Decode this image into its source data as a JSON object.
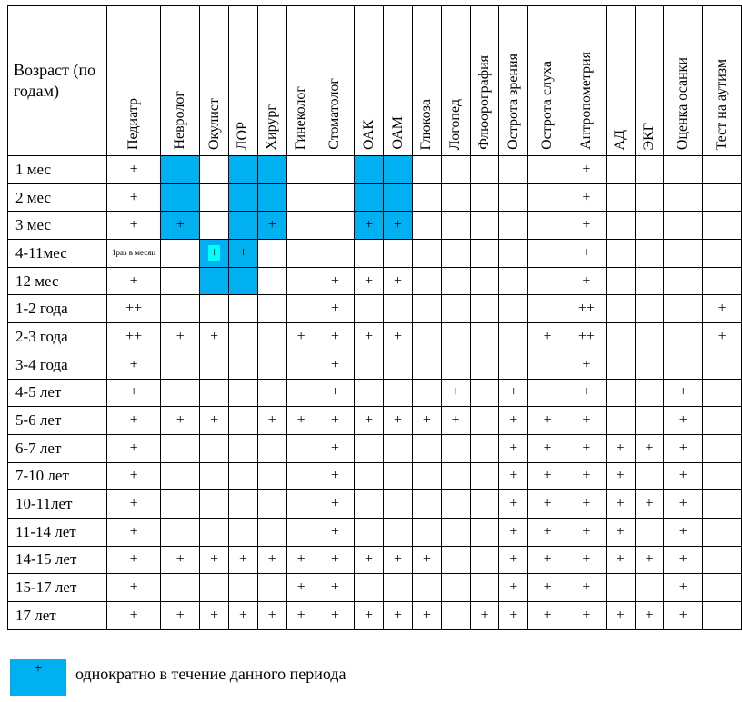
{
  "table": {
    "age_header": "Возраст (по годам)",
    "columns": [
      "Педиатр",
      "Невролог",
      "Окулист",
      "ЛОР",
      "Хирург",
      "Гинеколог",
      "Стоматолог",
      "ОАК",
      "ОАМ",
      "Глюкоза",
      "Логопед",
      "Флюорография",
      "Острота зрения",
      "Острота слуха",
      "Антропометрия",
      "АД",
      "ЭКГ",
      "Оценка осанки",
      "Тест на аутизм"
    ],
    "rows": [
      {
        "age": "1 мес",
        "cells": [
          "+",
          "",
          "",
          "",
          "",
          "",
          "",
          "",
          "",
          "",
          "",
          "",
          "",
          "",
          "+",
          "",
          "",
          "",
          ""
        ]
      },
      {
        "age": "2 мес",
        "cells": [
          "+",
          "",
          "",
          "",
          "",
          "",
          "",
          "",
          "",
          "",
          "",
          "",
          "",
          "",
          "+",
          "",
          "",
          "",
          ""
        ]
      },
      {
        "age": "3 мес",
        "cells": [
          "+",
          "+",
          "",
          "",
          "+",
          "",
          "",
          "+",
          "+",
          "",
          "",
          "",
          "",
          "",
          "+",
          "",
          "",
          "",
          ""
        ]
      },
      {
        "age": "4-11мес",
        "cells": [
          "1раз в месяц",
          "",
          "+",
          "+",
          "",
          "",
          "",
          "",
          "",
          "",
          "",
          "",
          "",
          "",
          "+",
          "",
          "",
          "",
          ""
        ]
      },
      {
        "age": "12 мес",
        "cells": [
          "+",
          "",
          "",
          "",
          "",
          "",
          "+",
          "+",
          "+",
          "",
          "",
          "",
          "",
          "",
          "+",
          "",
          "",
          "",
          ""
        ]
      },
      {
        "age": "1-2 года",
        "cells": [
          "++",
          "",
          "",
          "",
          "",
          "",
          "+",
          "",
          "",
          "",
          "",
          "",
          "",
          "",
          "++",
          "",
          "",
          "",
          "+"
        ]
      },
      {
        "age": "2-3 года",
        "cells": [
          "++",
          "+",
          "+",
          "",
          "",
          "+",
          "+",
          "+",
          "+",
          "",
          "",
          "",
          "",
          "+",
          "++",
          "",
          "",
          "",
          "+"
        ]
      },
      {
        "age": "3-4 года",
        "cells": [
          "+",
          "",
          "",
          "",
          "",
          "",
          "+",
          "",
          "",
          "",
          "",
          "",
          "",
          "",
          "+",
          "",
          "",
          "",
          ""
        ]
      },
      {
        "age": "4-5 лет",
        "cells": [
          "+",
          "",
          "",
          "",
          "",
          "",
          "+",
          "",
          "",
          "",
          "+",
          "",
          "+",
          "",
          "+",
          "",
          "",
          "+",
          ""
        ]
      },
      {
        "age": "5-6 лет",
        "cells": [
          "+",
          "+",
          "+",
          "",
          "+",
          "+",
          "+",
          "+",
          "+",
          "+",
          "+",
          "",
          "+",
          "+",
          "+",
          "",
          "",
          "+",
          ""
        ]
      },
      {
        "age": "6-7 лет",
        "cells": [
          "+",
          "",
          "",
          "",
          "",
          "",
          "+",
          "",
          "",
          "",
          "",
          "",
          "+",
          "+",
          "+",
          "+",
          "+",
          "+",
          ""
        ]
      },
      {
        "age": "7-10 лет",
        "cells": [
          "+",
          "",
          "",
          "",
          "",
          "",
          "+",
          "",
          "",
          "",
          "",
          "",
          "+",
          "+",
          "+",
          "+",
          "",
          "+",
          ""
        ]
      },
      {
        "age": "10-11лет",
        "cells": [
          "+",
          "",
          "",
          "",
          "",
          "",
          "+",
          "",
          "",
          "",
          "",
          "",
          "+",
          "+",
          "+",
          "+",
          "+",
          "+",
          ""
        ]
      },
      {
        "age": "11-14 лет",
        "cells": [
          "+",
          "",
          "",
          "",
          "",
          "",
          "+",
          "",
          "",
          "",
          "",
          "",
          "+",
          "+",
          "+",
          "+",
          "",
          "+",
          ""
        ]
      },
      {
        "age": "14-15 лет",
        "cells": [
          "+",
          "+",
          "+",
          "+",
          "+",
          "+",
          "+",
          "+",
          "+",
          "+",
          "",
          "",
          "+",
          "+",
          "+",
          "+",
          "+",
          "+",
          ""
        ]
      },
      {
        "age": "15-17 лет",
        "cells": [
          "+",
          "",
          "",
          "",
          "",
          "+",
          "+",
          "",
          "",
          "",
          "",
          "",
          "+",
          "+",
          "+",
          "",
          "",
          "+",
          ""
        ]
      },
      {
        "age": "17 лет",
        "cells": [
          "+",
          "+",
          "+",
          "+",
          "+",
          "+",
          "+",
          "+",
          "+",
          "+",
          "",
          "+",
          "+",
          "+",
          "+",
          "+",
          "+",
          "+",
          ""
        ]
      }
    ]
  },
  "legend": {
    "symbol": "+",
    "text": "однократно в течение данного периода"
  },
  "colors": {
    "highlight": "#00b0f0",
    "mark_highlight": "#00ffff"
  }
}
